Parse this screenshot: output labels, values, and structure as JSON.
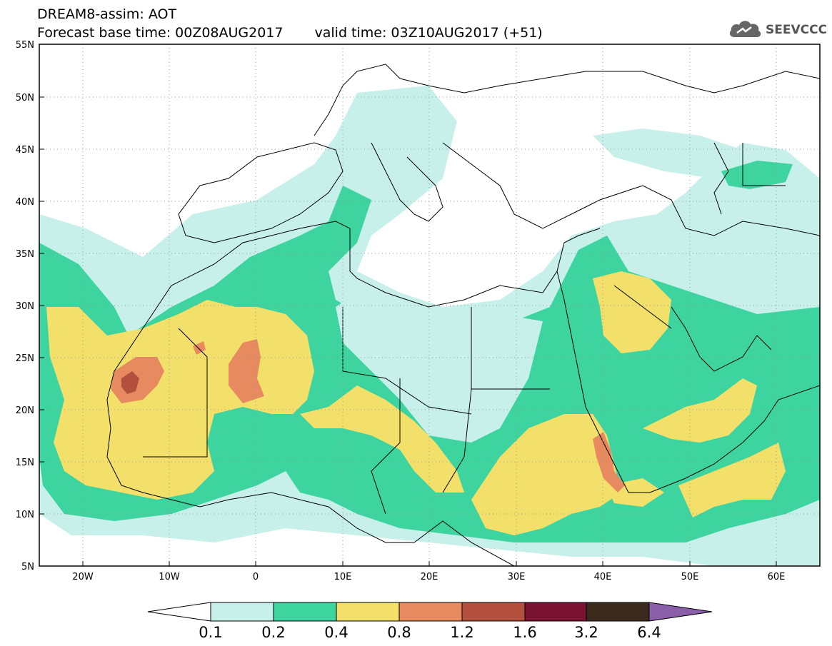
{
  "header": {
    "title_line1": "DREAM8-assim: AOT",
    "base_time": "Forecast base time: 00Z08AUG2017",
    "valid_time": "valid time: 03Z10AUG2017 (+51)"
  },
  "logo": {
    "text": "SEEVCCC",
    "icon": "cloud-icon"
  },
  "map": {
    "lat_labels": [
      "55N",
      "50N",
      "45N",
      "40N",
      "35N",
      "30N",
      "25N",
      "20N",
      "15N",
      "10N",
      "5N"
    ],
    "lon_labels": [
      "20W",
      "10W",
      "0",
      "10E",
      "20E",
      "30E",
      "40E",
      "50E",
      "60E"
    ],
    "grid": "dotted",
    "colors": {
      "c1": "#c7f0ea",
      "c2": "#3ed4a0",
      "c3": "#f2e06a",
      "c4": "#e88a60",
      "c5": "#b2503d",
      "c6": "#7a1232",
      "c7": "#3a2a1c",
      "c8": "#8a5ea8"
    }
  },
  "colorbar": {
    "labels": [
      "0.1",
      "0.2",
      "0.4",
      "0.8",
      "1.2",
      "1.6",
      "3.2",
      "6.4"
    ],
    "colors": [
      "#ffffff",
      "#c7f0ea",
      "#3ed4a0",
      "#f2e06a",
      "#e88a60",
      "#b2503d",
      "#7a1232",
      "#3a2a1c",
      "#8a5ea8"
    ]
  }
}
